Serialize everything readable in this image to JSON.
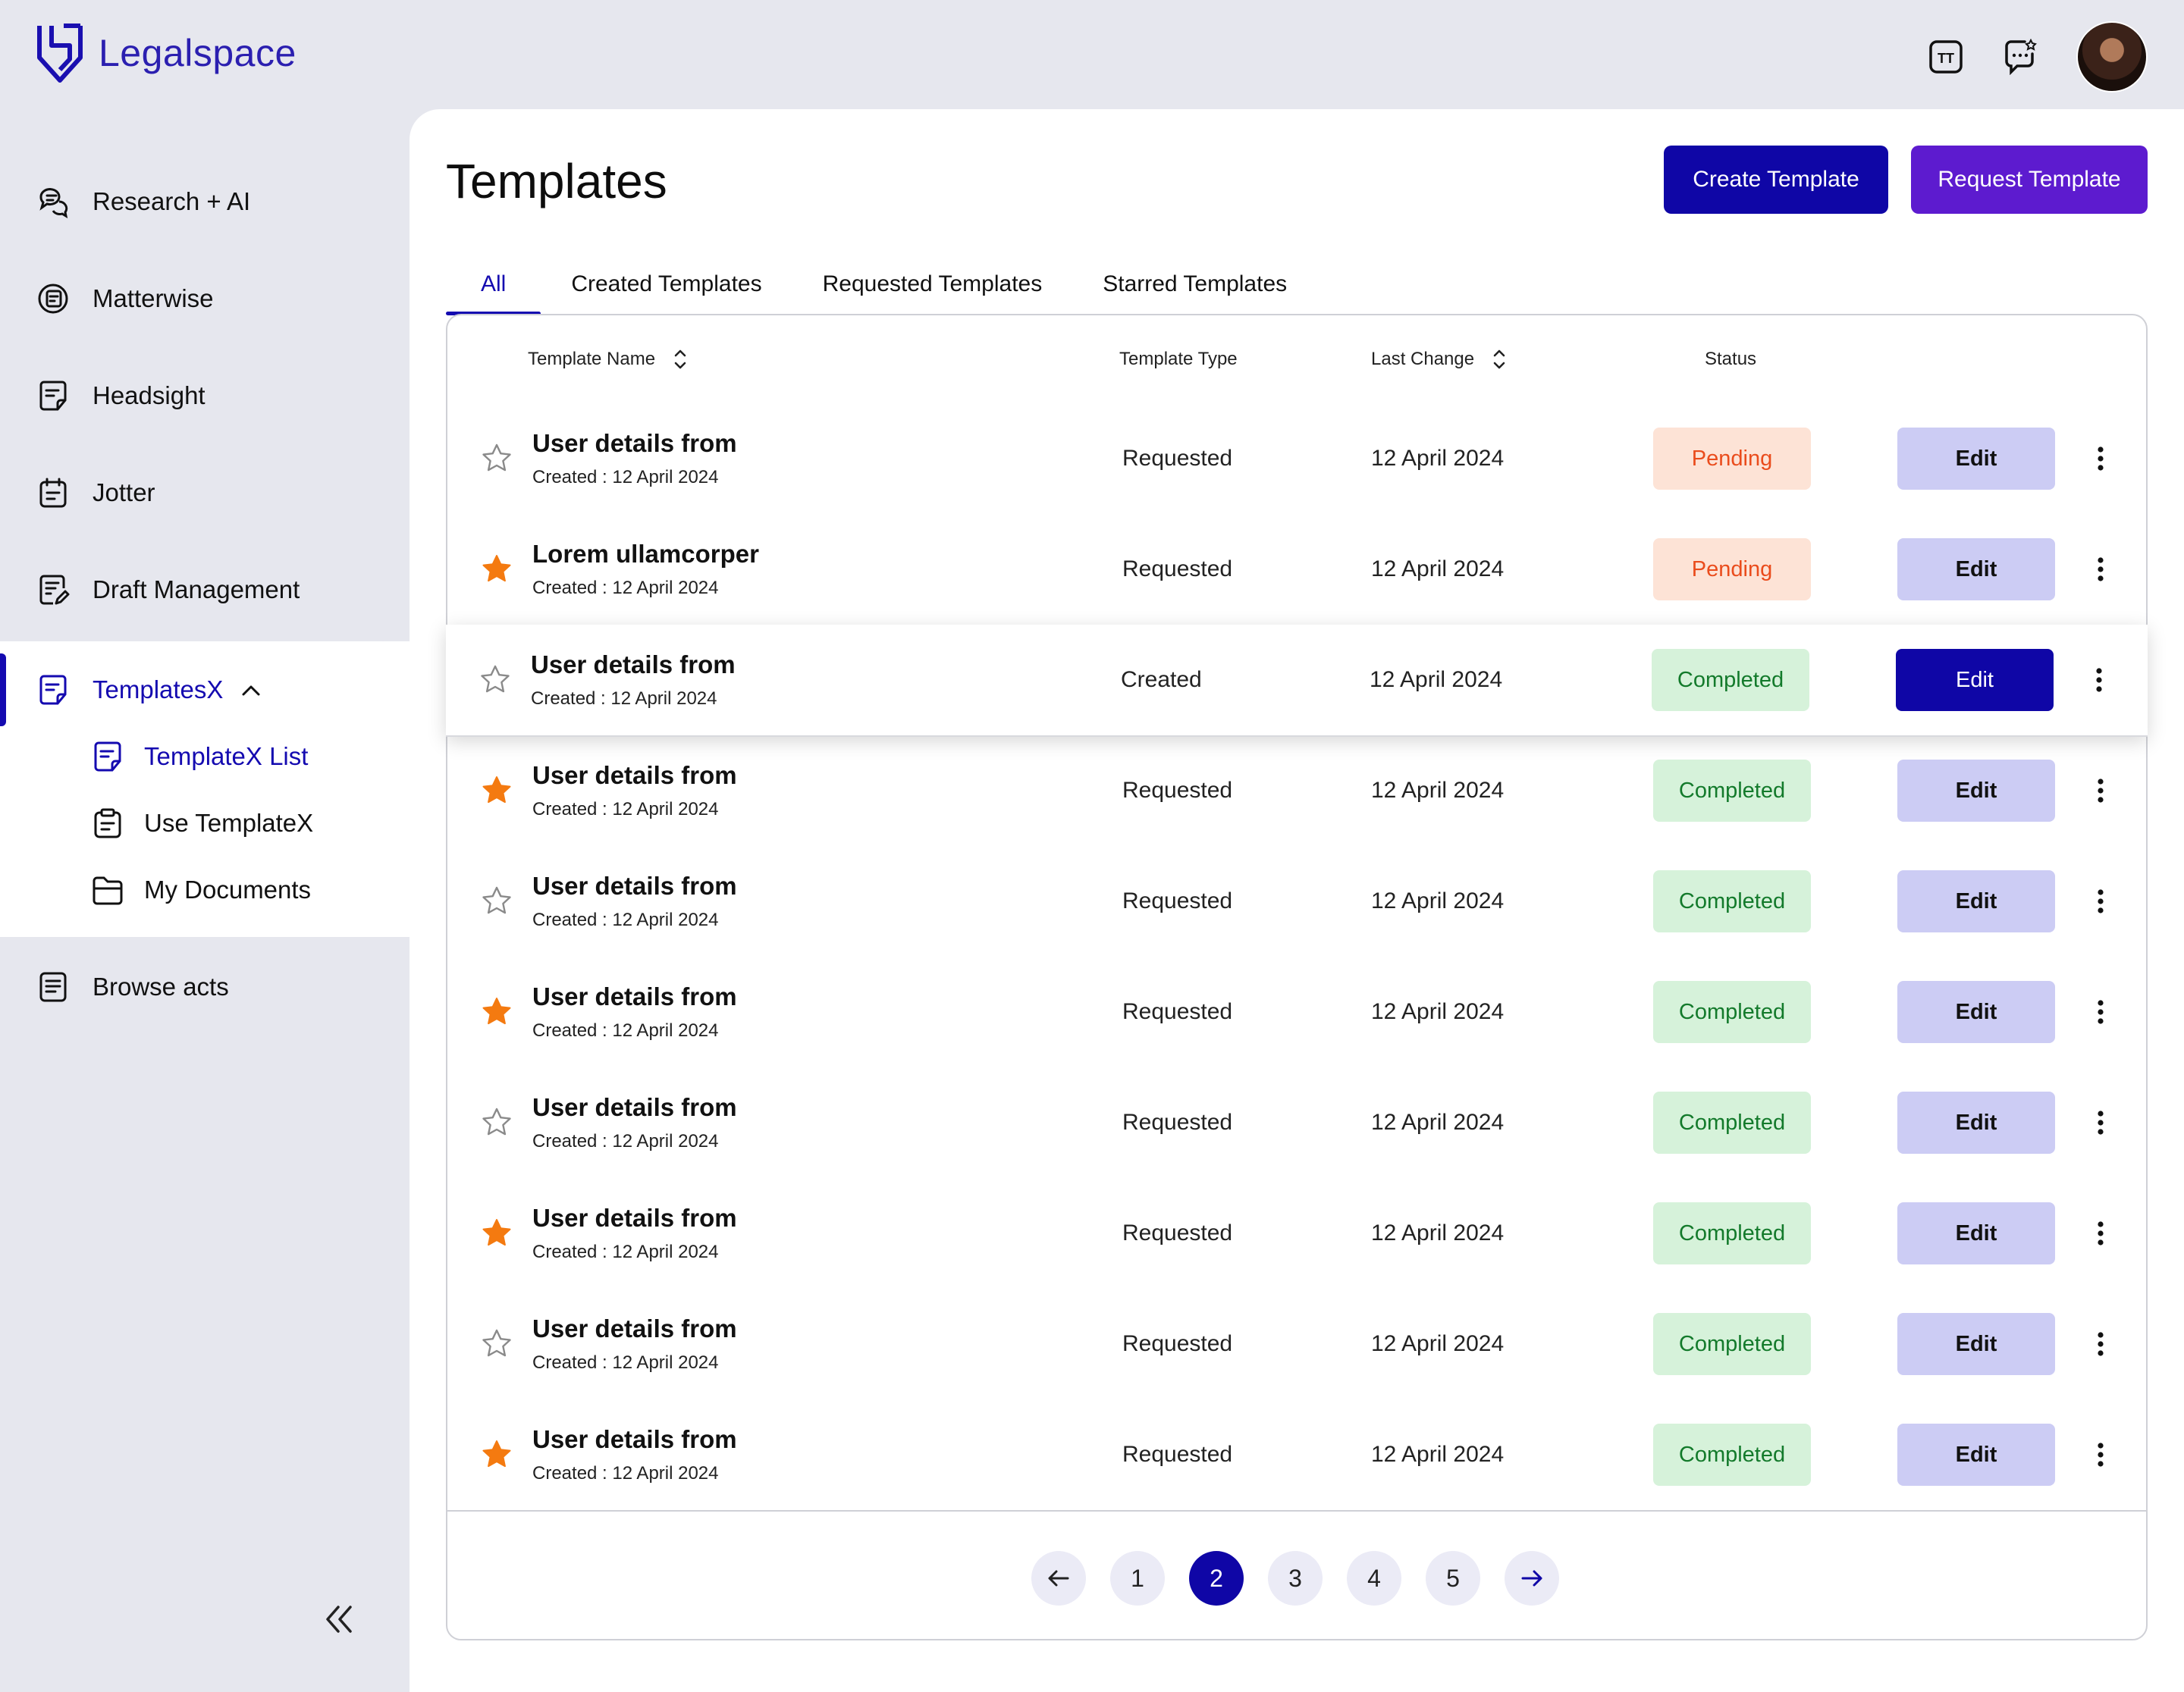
{
  "app": {
    "name": "Legalspace"
  },
  "colors": {
    "brand": "#140ab0",
    "create_button": "#0f06a6",
    "request_button": "#5d1bcf",
    "star_filled": "#f47a10",
    "pending_text": "#ea4c1c",
    "completed_text": "#137a2b"
  },
  "topbar": {
    "icons": [
      "text-size-icon",
      "chat-icon",
      "avatar"
    ]
  },
  "sidebar": {
    "items": [
      {
        "label": "Research + AI",
        "icon": "chat-bubbles-icon"
      },
      {
        "label": "Matterwise",
        "icon": "matterwise-icon"
      },
      {
        "label": "Headsight",
        "icon": "document-icon"
      },
      {
        "label": "Jotter",
        "icon": "notepad-icon"
      },
      {
        "label": "Draft Management",
        "icon": "draft-icon"
      },
      {
        "label": "TemplatesX",
        "icon": "template-icon",
        "expanded": true,
        "active": true
      },
      {
        "label": "Browse acts",
        "icon": "book-icon"
      }
    ],
    "sub_items": [
      {
        "label": "TemplateX List",
        "icon": "template-list-icon",
        "active": true
      },
      {
        "label": "Use TemplateX",
        "icon": "clipboard-icon"
      },
      {
        "label": "My Documents",
        "icon": "folder-icon"
      }
    ]
  },
  "page": {
    "title": "Templates",
    "buttons": {
      "create": "Create Template",
      "request": "Request Template"
    },
    "tabs": [
      "All",
      "Created Templates",
      "Requested Templates",
      "Starred Templates"
    ],
    "active_tab": "All"
  },
  "table": {
    "columns": {
      "name": "Template Name",
      "type": "Template Type",
      "last_change": "Last Change",
      "status": "Status"
    },
    "created_prefix": "Created : ",
    "edit_label": "Edit",
    "rows": [
      {
        "name": "User details from",
        "created": "12 April 2024",
        "type": "Requested",
        "last_change": "12 April 2024",
        "status": "Pending",
        "starred": false
      },
      {
        "name": "Lorem ullamcorper",
        "created": "12 April 2024",
        "type": "Requested",
        "last_change": "12 April 2024",
        "status": "Pending",
        "starred": true
      },
      {
        "name": "User details from",
        "created": "12 April 2024",
        "type": "Created",
        "last_change": "12 April 2024",
        "status": "Completed",
        "starred": false,
        "highlighted": true
      },
      {
        "name": "User details from",
        "created": "12 April 2024",
        "type": "Requested",
        "last_change": "12 April 2024",
        "status": "Completed",
        "starred": true
      },
      {
        "name": "User details from",
        "created": "12 April 2024",
        "type": "Requested",
        "last_change": "12 April 2024",
        "status": "Completed",
        "starred": false
      },
      {
        "name": "User details from",
        "created": "12 April 2024",
        "type": "Requested",
        "last_change": "12 April 2024",
        "status": "Completed",
        "starred": true
      },
      {
        "name": "User details from",
        "created": "12 April 2024",
        "type": "Requested",
        "last_change": "12 April 2024",
        "status": "Completed",
        "starred": false
      },
      {
        "name": "User details from",
        "created": "12 April 2024",
        "type": "Requested",
        "last_change": "12 April 2024",
        "status": "Completed",
        "starred": true
      },
      {
        "name": "User details from",
        "created": "12 April 2024",
        "type": "Requested",
        "last_change": "12 April 2024",
        "status": "Completed",
        "starred": false
      },
      {
        "name": "User details from",
        "created": "12 April 2024",
        "type": "Requested",
        "last_change": "12 April 2024",
        "status": "Completed",
        "starred": true
      }
    ]
  },
  "pagination": {
    "pages": [
      "1",
      "2",
      "3",
      "4",
      "5"
    ],
    "current": "2",
    "prev_icon": "arrow-left-icon",
    "next_icon": "arrow-right-icon"
  }
}
